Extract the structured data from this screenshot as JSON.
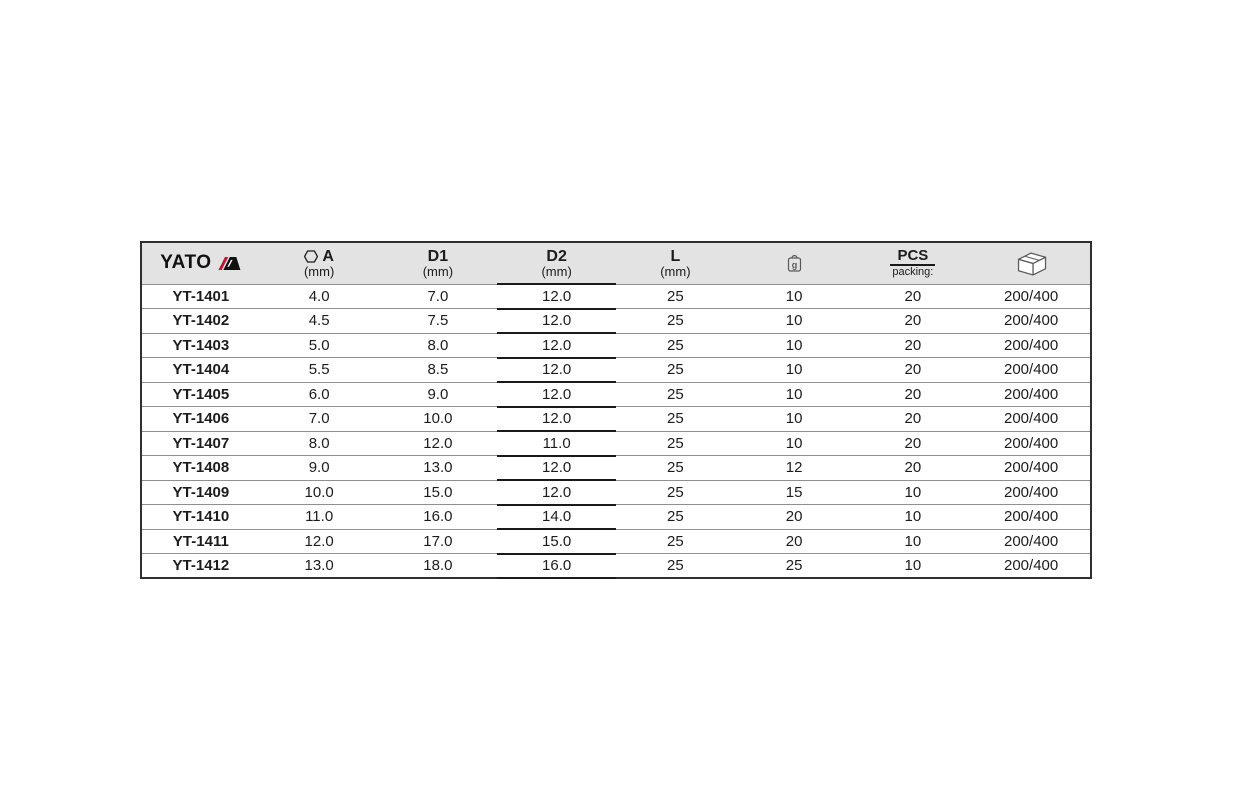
{
  "brand": {
    "name": "YATO"
  },
  "colors": {
    "header_bg": "#e3e3e3",
    "outer_border": "#2f2f2f",
    "row_line": "#8f8f8f",
    "highlight_line": "#1a1a1a",
    "accent_red": "#c41230",
    "text": "#1c1c1c"
  },
  "table": {
    "columns": [
      {
        "id": "model",
        "label": "",
        "sublabel": "",
        "icon": "yato-logo"
      },
      {
        "id": "a",
        "label": "A",
        "sublabel": "(mm)",
        "icon": "hexagon-icon"
      },
      {
        "id": "d1",
        "label": "D1",
        "sublabel": "(mm)"
      },
      {
        "id": "d2",
        "label": "D2",
        "sublabel": "(mm)",
        "highlight": true
      },
      {
        "id": "l",
        "label": "L",
        "sublabel": "(mm)"
      },
      {
        "id": "weight",
        "label": "",
        "sublabel": "",
        "icon": "weight-gram-icon",
        "icon_text": "g"
      },
      {
        "id": "pcs",
        "label": "PCS",
        "sublabel": "packing:"
      },
      {
        "id": "packing",
        "label": "",
        "sublabel": "",
        "icon": "carton-box-icon"
      }
    ],
    "rows": [
      {
        "model": "YT-1401",
        "a": "4.0",
        "d1": "7.0",
        "d2": "12.0",
        "l": "25",
        "weight": "10",
        "pcs": "20",
        "packing": "200/400"
      },
      {
        "model": "YT-1402",
        "a": "4.5",
        "d1": "7.5",
        "d2": "12.0",
        "l": "25",
        "weight": "10",
        "pcs": "20",
        "packing": "200/400"
      },
      {
        "model": "YT-1403",
        "a": "5.0",
        "d1": "8.0",
        "d2": "12.0",
        "l": "25",
        "weight": "10",
        "pcs": "20",
        "packing": "200/400"
      },
      {
        "model": "YT-1404",
        "a": "5.5",
        "d1": "8.5",
        "d2": "12.0",
        "l": "25",
        "weight": "10",
        "pcs": "20",
        "packing": "200/400"
      },
      {
        "model": "YT-1405",
        "a": "6.0",
        "d1": "9.0",
        "d2": "12.0",
        "l": "25",
        "weight": "10",
        "pcs": "20",
        "packing": "200/400"
      },
      {
        "model": "YT-1406",
        "a": "7.0",
        "d1": "10.0",
        "d2": "12.0",
        "l": "25",
        "weight": "10",
        "pcs": "20",
        "packing": "200/400"
      },
      {
        "model": "YT-1407",
        "a": "8.0",
        "d1": "12.0",
        "d2": "11.0",
        "l": "25",
        "weight": "10",
        "pcs": "20",
        "packing": "200/400"
      },
      {
        "model": "YT-1408",
        "a": "9.0",
        "d1": "13.0",
        "d2": "12.0",
        "l": "25",
        "weight": "12",
        "pcs": "20",
        "packing": "200/400"
      },
      {
        "model": "YT-1409",
        "a": "10.0",
        "d1": "15.0",
        "d2": "12.0",
        "l": "25",
        "weight": "15",
        "pcs": "10",
        "packing": "200/400"
      },
      {
        "model": "YT-1410",
        "a": "11.0",
        "d1": "16.0",
        "d2": "14.0",
        "l": "25",
        "weight": "20",
        "pcs": "10",
        "packing": "200/400"
      },
      {
        "model": "YT-1411",
        "a": "12.0",
        "d1": "17.0",
        "d2": "15.0",
        "l": "25",
        "weight": "20",
        "pcs": "10",
        "packing": "200/400"
      },
      {
        "model": "YT-1412",
        "a": "13.0",
        "d1": "18.0",
        "d2": "16.0",
        "l": "25",
        "weight": "25",
        "pcs": "10",
        "packing": "200/400"
      }
    ]
  }
}
